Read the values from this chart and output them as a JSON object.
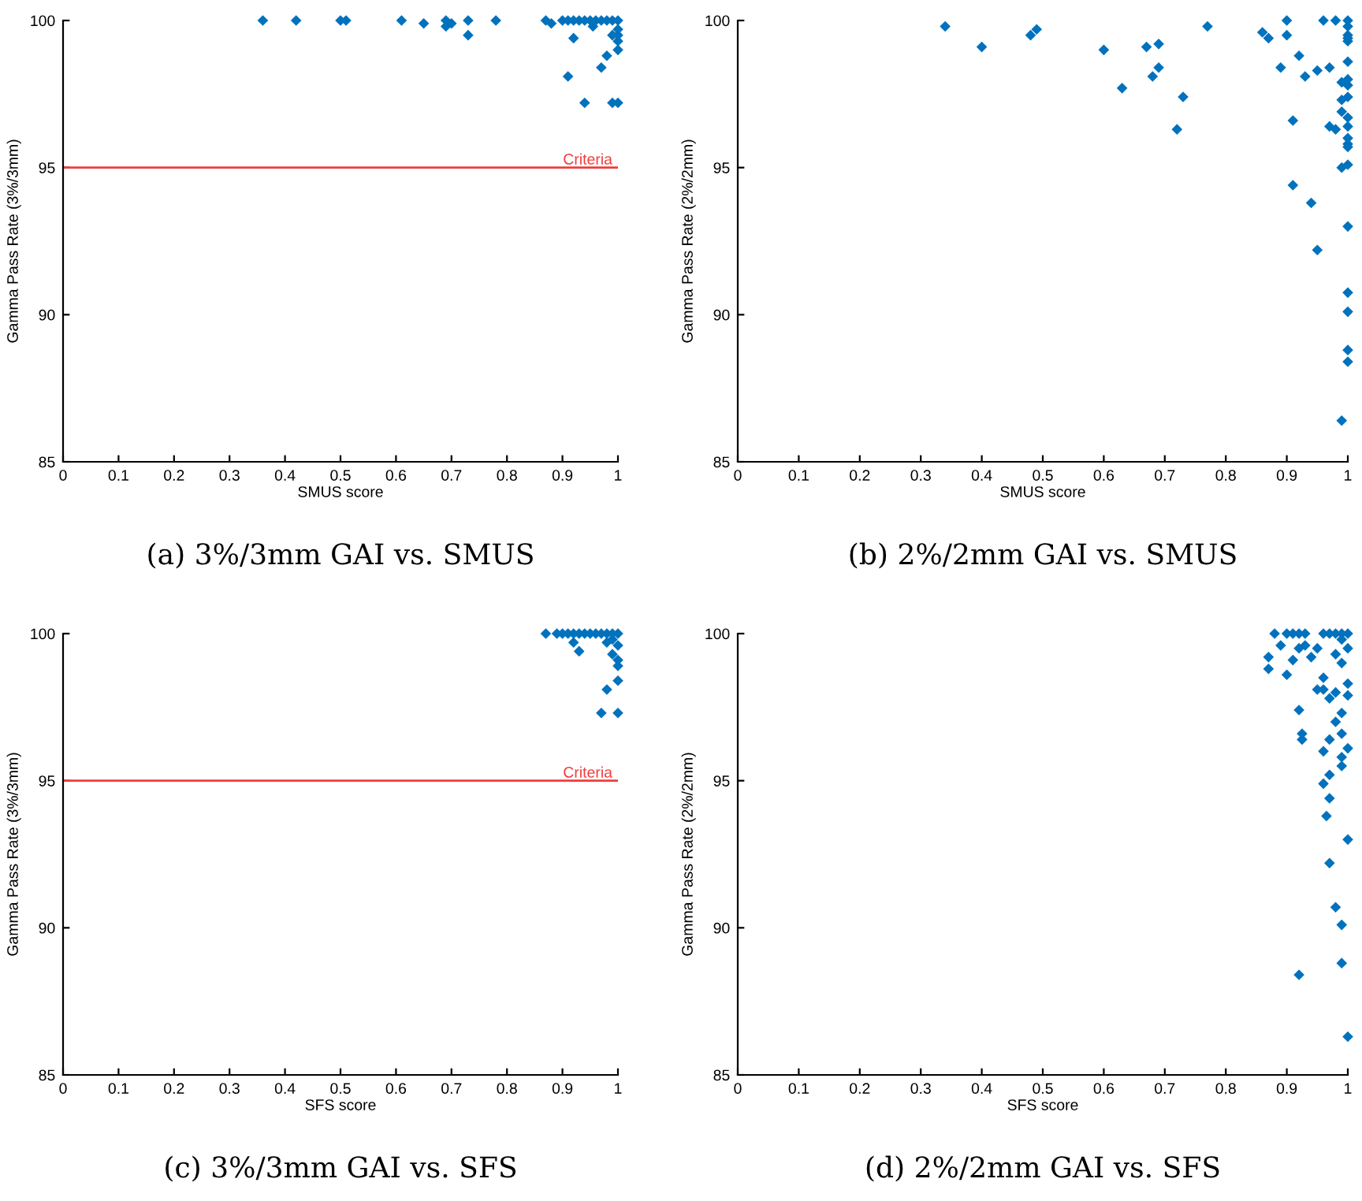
{
  "chart_data": [
    {
      "type": "scatter",
      "xlabel": "SMUS score",
      "ylabel": "Gamma Pass Rate (3%/3mm)",
      "annotations": [
        "(a) 3%/3mm GAI vs. SMUS"
      ],
      "marker": "diamond",
      "grid": false,
      "xlim": [
        0,
        1
      ],
      "ylim": [
        85,
        100
      ],
      "xticks": [
        0,
        0.1,
        0.2,
        0.3,
        0.4,
        0.5,
        0.6,
        0.7,
        0.8,
        0.9,
        1
      ],
      "yticks": [
        85,
        90,
        95,
        100
      ],
      "ref_lines": [
        {
          "axis": "y",
          "value": 95,
          "label": "Criteria",
          "color": "#f03c3c"
        }
      ],
      "series": [
        {
          "color": "#0072bd",
          "x": [
            0.36,
            0.42,
            0.5,
            0.51,
            0.61,
            0.65,
            0.69,
            0.69,
            0.7,
            0.73,
            0.73,
            0.78,
            0.87,
            0.9,
            0.91,
            0.92,
            0.93,
            0.94,
            0.95,
            0.955,
            0.96,
            0.97,
            0.98,
            0.99,
            1.0,
            0.88,
            0.92,
            0.91,
            0.94,
            0.97,
            0.98,
            0.99,
            1.0,
            1.0,
            1.0,
            1.0,
            1.0,
            0.99
          ],
          "values": [
            100,
            100,
            100,
            100,
            100,
            99.9,
            100,
            99.8,
            99.9,
            100,
            99.5,
            100,
            100,
            100,
            100,
            99.4,
            100,
            100,
            100,
            99.8,
            100,
            98.4,
            100,
            100,
            100,
            99.9,
            100,
            98.1,
            97.2,
            100,
            98.8,
            97.2,
            97.2,
            99.0,
            99.3,
            99.5,
            99.7,
            99.5
          ]
        }
      ]
    },
    {
      "type": "scatter",
      "xlabel": "SMUS score",
      "ylabel": "Gamma Pass Rate (2%/2mm)",
      "annotations": [
        "(b) 2%/2mm GAI vs. SMUS"
      ],
      "marker": "diamond",
      "grid": false,
      "xlim": [
        0,
        1
      ],
      "ylim": [
        85,
        100
      ],
      "xticks": [
        0,
        0.1,
        0.2,
        0.3,
        0.4,
        0.5,
        0.6,
        0.7,
        0.8,
        0.9,
        1
      ],
      "yticks": [
        85,
        90,
        95,
        100
      ],
      "series": [
        {
          "color": "#0072bd",
          "x": [
            0.34,
            0.4,
            0.48,
            0.49,
            0.6,
            0.63,
            0.67,
            0.69,
            0.68,
            0.69,
            0.73,
            0.72,
            0.77,
            0.86,
            0.87,
            0.9,
            0.9,
            0.92,
            0.89,
            0.93,
            0.95,
            0.91,
            0.97,
            0.96,
            0.98,
            0.91,
            0.94,
            0.95,
            1.0,
            1.0,
            1.0,
            1.0,
            1.0,
            0.99,
            0.97,
            0.98,
            0.99,
            0.99,
            1.0,
            1.0,
            1.0,
            1.0,
            1.0,
            0.99,
            1.0,
            1.0,
            1.0,
            1.0,
            1.0,
            1.0,
            1.0,
            1.0,
            1.0,
            1.0,
            0.99
          ],
          "values": [
            99.8,
            99.1,
            99.5,
            99.7,
            99.0,
            97.7,
            99.1,
            99.2,
            98.1,
            98.4,
            97.4,
            96.3,
            99.8,
            99.6,
            99.4,
            100,
            99.5,
            98.8,
            98.4,
            98.1,
            98.3,
            96.6,
            98.4,
            100,
            100,
            94.4,
            93.8,
            92.2,
            93.0,
            90.75,
            90.1,
            88.8,
            88.4,
            86.4,
            96.4,
            96.3,
            97.3,
            96.9,
            96.7,
            96.4,
            96.0,
            95.8,
            95.7,
            95.0,
            95.1,
            100,
            99.8,
            99.5,
            99.4,
            99.3,
            98.6,
            98.0,
            97.8,
            97.4,
            97.9
          ]
        }
      ]
    },
    {
      "type": "scatter",
      "xlabel": "SFS score",
      "ylabel": "Gamma Pass Rate (3%/3mm)",
      "annotations": [
        "(c) 3%/3mm GAI vs. SFS"
      ],
      "marker": "diamond",
      "grid": false,
      "xlim": [
        0,
        1
      ],
      "ylim": [
        85,
        100
      ],
      "xticks": [
        0,
        0.1,
        0.2,
        0.3,
        0.4,
        0.5,
        0.6,
        0.7,
        0.8,
        0.9,
        1
      ],
      "yticks": [
        85,
        90,
        95,
        100
      ],
      "ref_lines": [
        {
          "axis": "y",
          "value": 95,
          "label": "Criteria",
          "color": "#f03c3c"
        }
      ],
      "series": [
        {
          "color": "#0072bd",
          "x": [
            0.87,
            0.89,
            0.9,
            0.91,
            0.92,
            0.93,
            0.94,
            0.95,
            0.96,
            0.97,
            0.98,
            0.99,
            1.0,
            0.92,
            0.93,
            0.98,
            0.99,
            1.0,
            1.0,
            1.0,
            0.98,
            0.97,
            1.0,
            0.99,
            1.0
          ],
          "values": [
            100,
            100,
            100,
            100,
            100,
            100,
            100,
            100,
            100,
            100,
            100,
            100,
            100,
            99.7,
            99.4,
            99.7,
            99.8,
            99.1,
            98.9,
            98.4,
            98.1,
            97.3,
            97.3,
            99.3,
            99.6
          ]
        }
      ]
    },
    {
      "type": "scatter",
      "xlabel": "SFS score",
      "ylabel": "Gamma Pass Rate (2%/2mm)",
      "annotations": [
        "(d) 2%/2mm GAI vs. SFS"
      ],
      "marker": "diamond",
      "grid": false,
      "xlim": [
        0,
        1
      ],
      "ylim": [
        85,
        100
      ],
      "xticks": [
        0,
        0.1,
        0.2,
        0.3,
        0.4,
        0.5,
        0.6,
        0.7,
        0.8,
        0.9,
        1
      ],
      "yticks": [
        85,
        90,
        95,
        100
      ],
      "series": [
        {
          "color": "#0072bd",
          "x": [
            0.88,
            0.9,
            0.91,
            0.92,
            0.93,
            0.96,
            0.97,
            0.98,
            0.99,
            1.0,
            0.87,
            0.87,
            0.9,
            0.89,
            0.91,
            0.92,
            0.93,
            0.94,
            0.95,
            0.96,
            0.92,
            0.925,
            0.925,
            0.96,
            0.97,
            0.95,
            0.97,
            0.96,
            0.97,
            0.96,
            0.97,
            0.965,
            0.97,
            0.98,
            0.99,
            0.99,
            0.92,
            1.0,
            1.0,
            0.98,
            0.99,
            0.99,
            1.0,
            0.99,
            1.0,
            1.0,
            0.99,
            1.0,
            0.98,
            0.99,
            0.98,
            0.99
          ],
          "values": [
            100,
            100,
            100,
            100,
            100,
            100,
            100,
            100,
            100,
            100,
            99.2,
            98.8,
            98.6,
            99.6,
            99.1,
            99.5,
            99.6,
            99.2,
            99.5,
            98.5,
            97.4,
            96.6,
            96.4,
            98.1,
            97.8,
            98.1,
            96.4,
            96.0,
            95.2,
            94.9,
            94.4,
            93.8,
            92.2,
            90.7,
            90.1,
            88.8,
            88.4,
            86.3,
            93.0,
            97.0,
            96.6,
            95.8,
            96.1,
            97.3,
            98.3,
            97.9,
            99.0,
            99.5,
            99.3,
            99.8,
            98.0,
            95.5
          ]
        }
      ]
    }
  ]
}
